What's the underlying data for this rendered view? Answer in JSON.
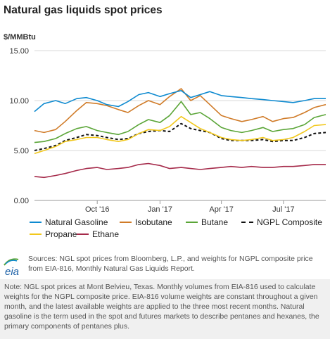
{
  "header": {
    "title": "Natural gas liquids spot prices",
    "unit": "$/MMBtu"
  },
  "chart_data": {
    "type": "line",
    "title": "Natural gas liquids spot prices",
    "ylabel": "$/MMBtu",
    "ylim": [
      0,
      15
    ],
    "yticks": [
      0,
      5,
      10,
      15
    ],
    "ytick_labels": [
      "0.00",
      "5.00",
      "10.00",
      "15.00"
    ],
    "xlim": [
      "2016-07-01",
      "2017-09-01"
    ],
    "xticks": [
      {
        "date": "2016-10-01",
        "label": "Oct '16"
      },
      {
        "date": "2017-01-01",
        "label": "Jan '17"
      },
      {
        "date": "2017-04-01",
        "label": "Apr '17"
      },
      {
        "date": "2017-07-01",
        "label": "Jul '17"
      }
    ],
    "grid": true,
    "legend_position": "bottom",
    "x": [
      "2016-07-01",
      "2016-07-15",
      "2016-08-01",
      "2016-08-15",
      "2016-09-01",
      "2016-09-15",
      "2016-10-01",
      "2016-10-15",
      "2016-11-01",
      "2016-11-15",
      "2016-12-01",
      "2016-12-15",
      "2017-01-01",
      "2017-01-15",
      "2017-02-01",
      "2017-02-15",
      "2017-03-01",
      "2017-03-15",
      "2017-04-01",
      "2017-04-15",
      "2017-05-01",
      "2017-05-15",
      "2017-06-01",
      "2017-06-15",
      "2017-07-01",
      "2017-07-15",
      "2017-08-01",
      "2017-08-15",
      "2017-09-01"
    ],
    "series": [
      {
        "name": "Natural Gasoline",
        "color": "#0e8ad0",
        "dash": false,
        "values": [
          8.9,
          9.7,
          10.0,
          9.7,
          10.2,
          10.3,
          10.0,
          9.6,
          9.4,
          9.9,
          10.6,
          10.8,
          10.4,
          10.7,
          11.0,
          10.3,
          10.6,
          10.9,
          10.5,
          10.4,
          10.3,
          10.2,
          10.1,
          10.0,
          9.9,
          9.8,
          10.0,
          10.2,
          10.2
        ]
      },
      {
        "name": "Isobutane",
        "color": "#d07b28",
        "dash": false,
        "values": [
          7.0,
          6.8,
          7.1,
          7.9,
          9.0,
          9.8,
          9.7,
          9.5,
          9.1,
          8.8,
          9.5,
          10.0,
          9.6,
          10.4,
          11.2,
          10.0,
          10.5,
          9.6,
          8.5,
          8.2,
          7.9,
          8.1,
          8.4,
          7.9,
          8.2,
          8.3,
          8.8,
          9.3,
          9.6
        ]
      },
      {
        "name": "Butane",
        "color": "#5aa537",
        "dash": false,
        "values": [
          5.8,
          5.9,
          6.2,
          6.7,
          7.2,
          7.4,
          7.0,
          6.8,
          6.6,
          6.9,
          7.6,
          8.1,
          7.8,
          8.5,
          9.9,
          8.6,
          8.8,
          8.2,
          7.3,
          7.0,
          6.8,
          7.0,
          7.3,
          6.9,
          7.1,
          7.2,
          7.6,
          8.3,
          8.6
        ]
      },
      {
        "name": "NGPL Composite",
        "color": "#111111",
        "dash": true,
        "values": [
          5.0,
          5.2,
          5.5,
          6.0,
          6.3,
          6.6,
          6.5,
          6.3,
          6.1,
          6.2,
          6.7,
          6.9,
          7.0,
          6.9,
          7.7,
          7.2,
          7.0,
          6.8,
          6.2,
          6.0,
          6.0,
          6.0,
          6.1,
          5.9,
          6.0,
          6.0,
          6.3,
          6.7,
          6.8
        ]
      },
      {
        "name": "Propane",
        "color": "#f2c81c",
        "dash": false,
        "values": [
          4.7,
          5.0,
          5.4,
          5.9,
          6.1,
          6.3,
          6.3,
          6.1,
          5.9,
          6.1,
          6.7,
          7.1,
          7.0,
          7.4,
          8.4,
          7.8,
          7.2,
          6.8,
          6.3,
          6.1,
          6.0,
          6.1,
          6.3,
          6.0,
          6.1,
          6.3,
          6.9,
          7.5,
          7.6
        ]
      },
      {
        "name": "Ethane",
        "color": "#a52a4a",
        "dash": false,
        "values": [
          2.4,
          2.3,
          2.5,
          2.7,
          3.0,
          3.2,
          3.3,
          3.1,
          3.2,
          3.3,
          3.6,
          3.7,
          3.5,
          3.2,
          3.3,
          3.2,
          3.1,
          3.2,
          3.3,
          3.4,
          3.3,
          3.4,
          3.3,
          3.3,
          3.4,
          3.4,
          3.5,
          3.6,
          3.6
        ]
      }
    ]
  },
  "source": {
    "logo_text": "eia",
    "text": "Sources: NGL spot prices from Bloomberg, L.P., and weights for NGPL composite price from EIA-816, Monthly Natural Gas Liquids Report."
  },
  "note": {
    "text": "Note: NGL spot prices at Mont Belvieu, Texas. Monthly volumes from EIA-816 used to calculate weights for the NGPL composite price. EIA-816 volume weights are constant throughout a given month, and the latest available weights are applied to the three most recent months. Natural gasoline is the term used in the spot and futures markets to describe pentanes and hexanes, the primary components of pentanes plus."
  }
}
